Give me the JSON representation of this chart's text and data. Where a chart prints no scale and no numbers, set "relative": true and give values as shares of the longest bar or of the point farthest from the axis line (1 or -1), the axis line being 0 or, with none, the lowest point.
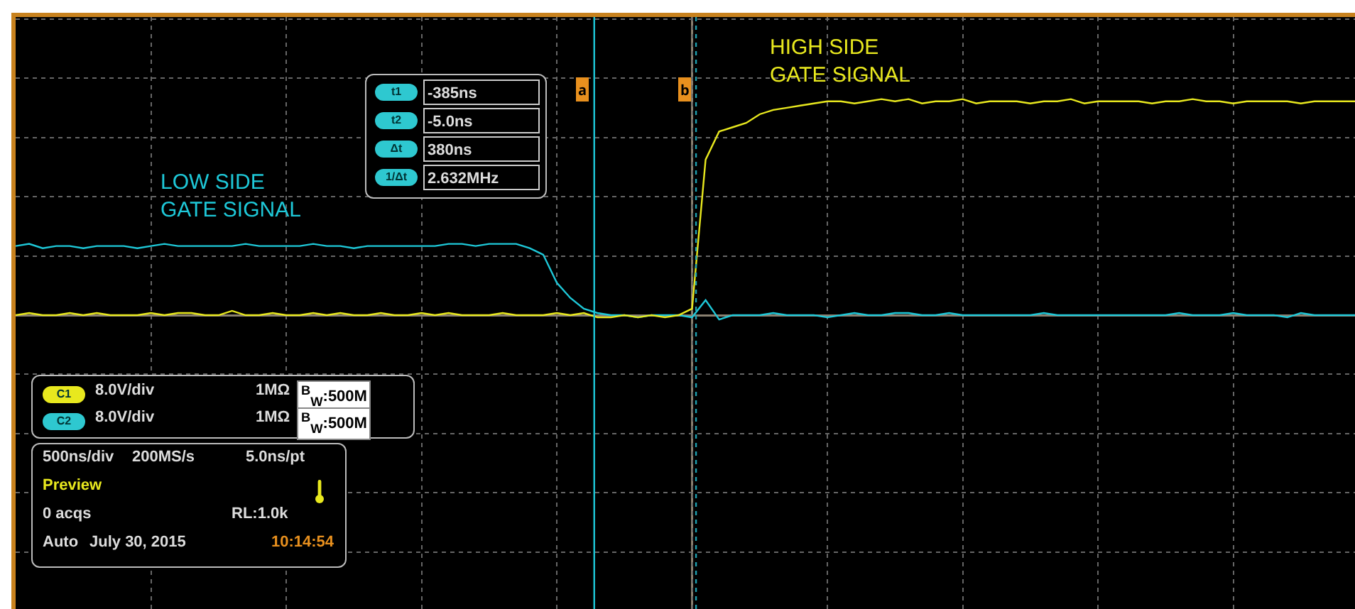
{
  "chart_data": {
    "type": "line",
    "relative": true,
    "grid": true,
    "legend": false,
    "marker": "none",
    "categories": [
      null,
      null,
      null,
      null,
      null,
      null,
      null,
      null,
      null,
      null,
      null,
      null,
      null,
      null,
      null,
      null,
      null,
      null,
      null,
      null,
      null,
      null,
      null,
      null,
      null,
      null,
      null,
      null,
      null,
      null,
      null,
      null,
      null,
      null,
      null,
      null,
      null,
      null,
      null,
      null,
      null,
      null,
      null,
      null,
      null,
      null,
      null,
      null,
      null,
      null,
      null,
      null,
      null,
      null,
      null,
      null,
      null,
      null,
      null,
      null,
      null,
      null,
      null,
      null,
      null,
      null,
      null,
      null,
      null,
      null,
      null,
      null,
      null,
      null,
      null,
      null,
      null,
      null,
      null,
      null,
      null,
      null,
      null,
      null,
      null,
      null,
      null,
      null,
      null,
      null,
      null,
      null,
      null,
      null,
      null,
      null,
      null,
      null,
      null,
      null
    ],
    "series": [
      {
        "name": "LOW SIDE\nGATE SIGNAL",
        "color": "#1ec8d8",
        "values": [
          0.32,
          0.33,
          0.31,
          0.32,
          0.32,
          0.31,
          0.32,
          0.32,
          0.32,
          0.31,
          0.32,
          0.33,
          0.32,
          0.32,
          0.32,
          0.32,
          0.32,
          0.33,
          0.32,
          0.32,
          0.32,
          0.32,
          0.33,
          0.32,
          0.32,
          0.31,
          0.32,
          0.32,
          0.32,
          0.32,
          0.32,
          0.32,
          0.33,
          0.33,
          0.32,
          0.33,
          0.33,
          0.33,
          0.31,
          0.28,
          0.15,
          0.08,
          0.03,
          0.01,
          0,
          0,
          -0.01,
          0,
          0,
          0,
          -0.01,
          0.07,
          -0.02,
          0,
          0,
          0,
          0.01,
          0,
          0,
          0,
          -0.01,
          0,
          0.01,
          0,
          0,
          0.01,
          0.01,
          0,
          0,
          0.01,
          0,
          0,
          0,
          0,
          0,
          0,
          0.01,
          0,
          0,
          0,
          0,
          0,
          0,
          0,
          0,
          0,
          0.01,
          0,
          0,
          0,
          0.01,
          0,
          0,
          0,
          -0.01,
          0.01,
          0,
          0,
          0,
          0
        ]
      },
      {
        "name": "HIGH SIDE\nGATE SIGNAL",
        "color": "#e8e81e",
        "values": [
          0,
          0.01,
          0,
          0,
          0.01,
          0,
          0.01,
          0,
          0,
          0,
          0.01,
          0,
          0.01,
          0.01,
          0,
          0,
          0.02,
          0,
          0,
          0.01,
          0,
          0,
          0.01,
          0,
          0.01,
          0,
          0,
          0.01,
          0,
          0,
          0.01,
          0,
          0.01,
          0,
          0,
          0,
          0.01,
          0,
          0,
          0,
          0.01,
          0,
          0.01,
          -0.01,
          -0.01,
          0,
          -0.01,
          0,
          -0.01,
          0,
          0.03,
          0.72,
          0.85,
          0.87,
          0.89,
          0.93,
          0.95,
          0.96,
          0.97,
          0.98,
          0.99,
          0.99,
          0.98,
          0.99,
          1,
          0.99,
          1,
          0.98,
          0.99,
          0.99,
          1,
          0.98,
          0.99,
          0.99,
          0.99,
          0.98,
          0.99,
          0.99,
          1,
          0.98,
          0.99,
          0.99,
          0.99,
          0.99,
          0.98,
          0.99,
          0.99,
          1,
          0.99,
          0.99,
          0.98,
          0.99,
          0.99,
          0.99,
          0.99,
          0.98,
          0.99,
          0.99,
          0.99,
          0.99
        ]
      }
    ],
    "annotations": [
      "a",
      "b",
      "t1",
      "-385ns",
      "t2",
      "-5.0ns",
      "Δt",
      "380ns",
      "1/Δt",
      "2.632MHz",
      "C1",
      "8.0V/div",
      "1MΩ",
      "$^{B}$$_{W}$:500M",
      "C2",
      "8.0V/div",
      "1MΩ",
      "$^{B}$$_{W}$:500M",
      "500ns/div",
      "200MS/s",
      "5.0ns/pt",
      "Preview",
      "0 acqs",
      "RL:1.0k",
      "Auto",
      "July 30, 2015",
      "10:14:54"
    ]
  }
}
